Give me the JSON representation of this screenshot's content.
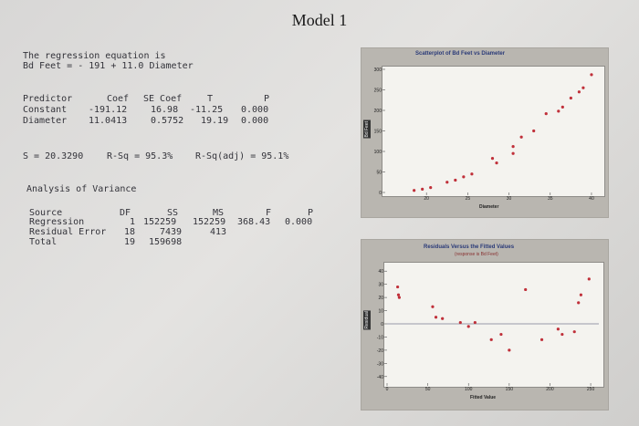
{
  "doc_title": "Model 1",
  "regression": {
    "heading": "The regression equation is",
    "equation": "Bd Feet = - 191 + 11.0 Diameter"
  },
  "coef_table": {
    "headers": [
      "Predictor",
      "Coef",
      "SE Coef",
      "T",
      "P"
    ],
    "rows": [
      [
        "Constant",
        "-191.12",
        "16.98",
        "-11.25",
        "0.000"
      ],
      [
        "Diameter",
        "11.0413",
        "0.5752",
        "19.19",
        "0.000"
      ]
    ]
  },
  "fit_stats": {
    "s": "S = 20.3290",
    "rsq": "R-Sq = 95.3%",
    "rsq_adj": "R-Sq(adj) = 95.1%"
  },
  "anova": {
    "heading": "Analysis of Variance",
    "headers": [
      "Source",
      "DF",
      "SS",
      "MS",
      "F",
      "P"
    ],
    "rows": [
      [
        "Regression",
        "1",
        "152259",
        "152259",
        "368.43",
        "0.000"
      ],
      [
        "Residual Error",
        "18",
        "7439",
        "413",
        "",
        ""
      ],
      [
        "Total",
        "19",
        "159698",
        "",
        "",
        ""
      ]
    ]
  },
  "chart_data": [
    {
      "type": "scatter",
      "title": "Scatterplot of Bd Feet vs Diameter",
      "xlabel": "Diameter",
      "ylabel": "Bd Feet",
      "xlim": [
        15,
        41
      ],
      "ylim": [
        0,
        300
      ],
      "xticks": [
        "20",
        "25",
        "30",
        "35",
        "40"
      ],
      "yticks": [
        "0",
        "50",
        "100",
        "150",
        "200",
        "250",
        "300"
      ],
      "point_color": "#c0303a",
      "x": [
        18.5,
        19.5,
        20.5,
        22.5,
        23.5,
        24.5,
        25.5,
        28.0,
        28.5,
        30.5,
        30.5,
        31.5,
        33.0,
        34.5,
        36.0,
        36.5,
        37.5,
        38.5,
        39.0,
        40.0
      ],
      "y": [
        5,
        8,
        12,
        25,
        30,
        38,
        45,
        83,
        72,
        95,
        112,
        135,
        150,
        192,
        198,
        208,
        230,
        245,
        255,
        287
      ]
    },
    {
      "type": "scatter",
      "title": "Residuals Versus the Fitted Values",
      "subtitle": "(response is Bd Feet)",
      "xlabel": "Fitted Value",
      "ylabel": "Residual",
      "xlim": [
        0,
        260
      ],
      "ylim": [
        -45,
        45
      ],
      "xticks": [
        "0",
        "50",
        "100",
        "150",
        "200",
        "250"
      ],
      "yticks": [
        "-40",
        "-30",
        "-20",
        "-10",
        "0",
        "10",
        "20",
        "30",
        "40"
      ],
      "point_color": "#c0303a",
      "x": [
        13,
        14,
        15,
        56,
        60,
        68,
        90,
        100,
        108,
        128,
        140,
        150,
        170,
        190,
        210,
        215,
        230,
        235,
        238,
        248
      ],
      "y": [
        28,
        22,
        20,
        13,
        5,
        4,
        1,
        -2,
        1,
        -12,
        -8,
        -20,
        26,
        -12,
        -4,
        -8,
        -6,
        16,
        22,
        34
      ]
    }
  ]
}
